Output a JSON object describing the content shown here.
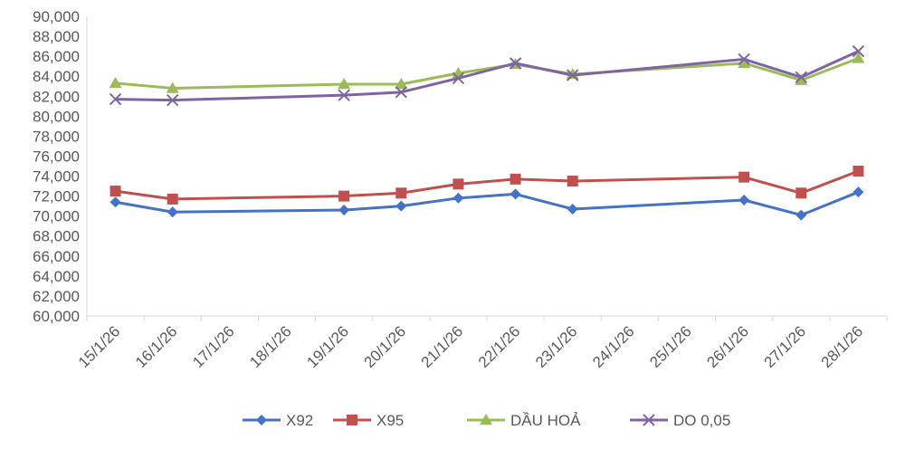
{
  "chart_data": {
    "type": "line",
    "title": "",
    "xlabel": "",
    "ylabel": "",
    "categories": [
      "15/1/26",
      "16/1/26",
      "17/1/26",
      "18/1/26",
      "19/1/26",
      "20/1/26",
      "21/1/26",
      "22/1/26",
      "23/1/26",
      "24/1/26",
      "25/1/26",
      "26/1/26",
      "27/1/26",
      "28/1/26"
    ],
    "ylim": [
      60000,
      90000
    ],
    "ytick_step": 2000,
    "ytick_labels": [
      "60,000",
      "62,000",
      "64,000",
      "66,000",
      "68,000",
      "70,000",
      "72,000",
      "74,000",
      "76,000",
      "78,000",
      "80,000",
      "82,000",
      "84,000",
      "86,000",
      "88,000",
      "90,000"
    ],
    "grid": false,
    "legend": "bottom",
    "series": [
      {
        "name": "X92",
        "color": "#4472C4",
        "marker": "diamond",
        "values": [
          71400,
          70400,
          null,
          null,
          70600,
          71000,
          71800,
          72200,
          70700,
          null,
          null,
          71600,
          70100,
          72400
        ]
      },
      {
        "name": "X95",
        "color": "#C0504D",
        "marker": "square",
        "values": [
          72500,
          71700,
          null,
          null,
          72000,
          72300,
          73200,
          73700,
          73500,
          null,
          null,
          73900,
          72300,
          74500
        ]
      },
      {
        "name": "DẦU HOẢ",
        "color": "#9BBB59",
        "marker": "triangle",
        "values": [
          83300,
          82800,
          null,
          null,
          83200,
          83200,
          84300,
          85200,
          84200,
          null,
          null,
          85300,
          83600,
          85800
        ]
      },
      {
        "name": "DO 0,05",
        "color": "#8064A2",
        "marker": "x",
        "values": [
          81700,
          81600,
          null,
          null,
          82100,
          82400,
          83800,
          85300,
          84100,
          null,
          null,
          85700,
          83900,
          86500
        ]
      }
    ]
  }
}
